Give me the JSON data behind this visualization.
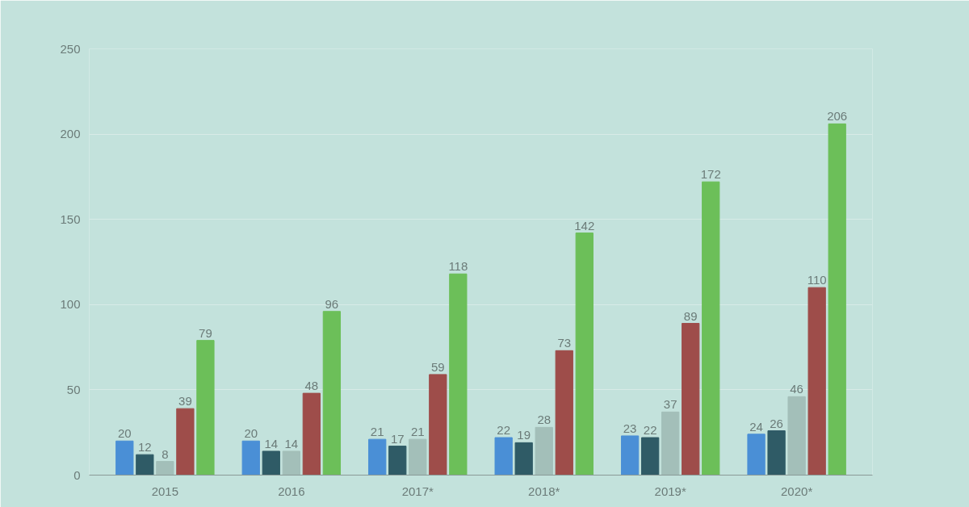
{
  "chart_data": {
    "type": "bar",
    "categories": [
      "2015",
      "2016",
      "2017*",
      "2018*",
      "2019*",
      "2020*"
    ],
    "series": [
      {
        "color": "#4a8fd6",
        "values": [
          20,
          20,
          21,
          22,
          23,
          24
        ]
      },
      {
        "color": "#2f5b66",
        "values": [
          12,
          14,
          17,
          19,
          22,
          26
        ]
      },
      {
        "color": "#a3bfb9",
        "values": [
          8,
          14,
          21,
          28,
          37,
          46
        ]
      },
      {
        "color": "#9e4d4a",
        "values": [
          39,
          48,
          59,
          73,
          89,
          110
        ]
      },
      {
        "color": "#6cbf59",
        "values": [
          79,
          96,
          118,
          142,
          172,
          206
        ]
      }
    ],
    "ylim": [
      0,
      250
    ],
    "yticks": [
      0,
      50,
      100,
      150,
      200,
      250
    ],
    "grid": "y",
    "data_labels": true
  }
}
